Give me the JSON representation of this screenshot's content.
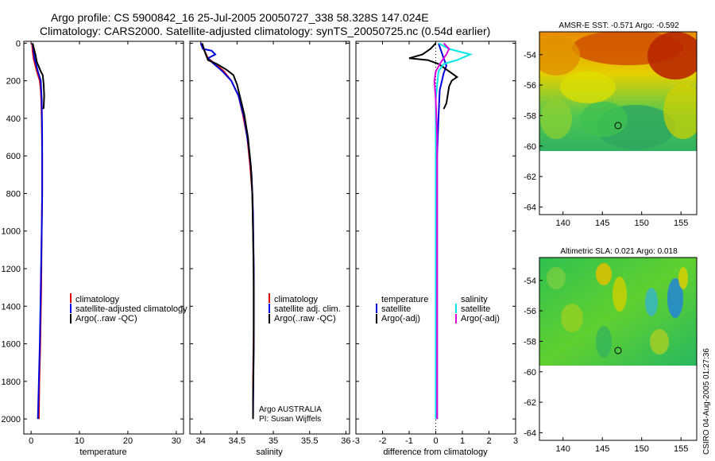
{
  "header": {
    "line1": "Argo profile: CS 5900842_16 25-Jul-2005 20050727_338 58.328S 147.024E",
    "line2": "Climatology: CARS2000. Satellite-adjusted climatology: synTS_20050725.nc (0.54d earlier)"
  },
  "depth_ticks": [
    "0",
    "200",
    "400",
    "600",
    "800",
    "1000",
    "1200",
    "1400",
    "1600",
    "1800",
    "2000"
  ],
  "colors": {
    "red": "#e00000",
    "blue": "#0000e0",
    "black": "#000000",
    "cyan": "#00e8e8",
    "magenta": "#e000e0"
  },
  "chart_data": [
    {
      "type": "line",
      "name": "temperature-profile",
      "xlabel": "temperature",
      "xlim": [
        -1.5,
        31.5
      ],
      "ylim": [
        2080,
        -10
      ],
      "xticks": [
        "0",
        "10",
        "20",
        "30"
      ],
      "y_reversed": true,
      "legend": [
        "climatology",
        "satellite-adjusted climatology",
        "Argo(..raw -QC)"
      ],
      "series": [
        {
          "name": "climatology",
          "color": "red",
          "points": [
            [
              0.2,
              0
            ],
            [
              0.3,
              40
            ],
            [
              0.5,
              80
            ],
            [
              1.2,
              150
            ],
            [
              1.8,
              200
            ],
            [
              2.0,
              250
            ],
            [
              2.1,
              300
            ],
            [
              2.2,
              400
            ],
            [
              2.3,
              600
            ],
            [
              2.3,
              800
            ],
            [
              2.2,
              1000
            ],
            [
              2.1,
              1300
            ],
            [
              1.9,
              1600
            ],
            [
              1.7,
              1800
            ],
            [
              1.6,
              2000
            ]
          ]
        },
        {
          "name": "satellite",
          "color": "blue",
          "points": [
            [
              0.3,
              0
            ],
            [
              0.5,
              40
            ],
            [
              0.7,
              80
            ],
            [
              1.4,
              150
            ],
            [
              2.0,
              200
            ],
            [
              2.2,
              300
            ],
            [
              2.3,
              500
            ],
            [
              2.3,
              800
            ],
            [
              2.2,
              1000
            ],
            [
              2.0,
              1300
            ],
            [
              1.8,
              1600
            ],
            [
              1.6,
              1800
            ],
            [
              1.4,
              2000
            ]
          ]
        },
        {
          "name": "Argo",
          "color": "black",
          "points": [
            [
              0.3,
              0
            ],
            [
              0.6,
              30
            ],
            [
              0.9,
              60
            ],
            [
              1.2,
              100
            ],
            [
              2.0,
              150
            ],
            [
              2.4,
              170
            ],
            [
              2.6,
              220
            ],
            [
              2.7,
              280
            ],
            [
              2.6,
              340
            ],
            [
              2.5,
              350
            ]
          ]
        }
      ]
    },
    {
      "type": "line",
      "name": "salinity-profile",
      "xlabel": "salinity",
      "xlim": [
        33.85,
        36.05
      ],
      "ylim": [
        2080,
        -10
      ],
      "xticks": [
        "34",
        "34.5",
        "35",
        "35.5",
        "36"
      ],
      "y_reversed": true,
      "legend": [
        "climatology",
        "satellite adj. clim.",
        "Argo(..raw -QC)"
      ],
      "annotation": [
        "Argo AUSTRALIA",
        "PI: Susan Wijffels"
      ],
      "series": [
        {
          "name": "climatology",
          "color": "red",
          "points": [
            [
              34.0,
              0
            ],
            [
              34.05,
              40
            ],
            [
              34.1,
              80
            ],
            [
              34.2,
              110
            ],
            [
              34.32,
              150
            ],
            [
              34.42,
              200
            ],
            [
              34.52,
              280
            ],
            [
              34.58,
              380
            ],
            [
              34.64,
              500
            ],
            [
              34.68,
              650
            ],
            [
              34.71,
              800
            ],
            [
              34.72,
              1000
            ],
            [
              34.73,
              1200
            ],
            [
              34.73,
              1500
            ],
            [
              34.72,
              1800
            ],
            [
              34.72,
              2000
            ]
          ]
        },
        {
          "name": "satellite",
          "color": "blue",
          "points": [
            [
              34.0,
              0
            ],
            [
              34.03,
              30
            ],
            [
              34.15,
              40
            ],
            [
              34.2,
              60
            ],
            [
              34.1,
              80
            ],
            [
              34.15,
              100
            ],
            [
              34.3,
              150
            ],
            [
              34.42,
              200
            ],
            [
              34.52,
              280
            ],
            [
              34.6,
              400
            ],
            [
              34.66,
              550
            ],
            [
              34.7,
              700
            ],
            [
              34.72,
              900
            ],
            [
              34.73,
              1200
            ],
            [
              34.73,
              1600
            ],
            [
              34.72,
              2000
            ]
          ]
        },
        {
          "name": "Argo",
          "color": "black",
          "points": [
            [
              34.02,
              0
            ],
            [
              34.05,
              40
            ],
            [
              34.1,
              90
            ],
            [
              34.22,
              110
            ],
            [
              34.35,
              140
            ],
            [
              34.45,
              170
            ],
            [
              34.5,
              220
            ],
            [
              34.55,
              300
            ],
            [
              34.6,
              380
            ],
            [
              34.65,
              500
            ],
            [
              34.69,
              650
            ],
            [
              34.71,
              800
            ],
            [
              34.72,
              1000
            ],
            [
              34.73,
              1300
            ],
            [
              34.73,
              1600
            ],
            [
              34.72,
              1900
            ],
            [
              34.72,
              2000
            ]
          ]
        }
      ]
    },
    {
      "type": "line",
      "name": "difference-profile",
      "xlabel": "difference from climatology",
      "xlim": [
        -3,
        3
      ],
      "ylim": [
        2080,
        -10
      ],
      "xticks": [
        "-3",
        "-2",
        "-1",
        "0",
        "1",
        "2",
        "3"
      ],
      "y_reversed": true,
      "legend_left": [
        "temperature",
        "satellite",
        "Argo(-adj)"
      ],
      "legend_right": [
        "salinity",
        "satellite",
        "Argo(-adj)"
      ],
      "series": [
        {
          "name": "temp-satellite",
          "color": "blue",
          "points": [
            [
              0.1,
              0
            ],
            [
              0.2,
              40
            ],
            [
              0.3,
              80
            ],
            [
              0.4,
              120
            ],
            [
              0.3,
              160
            ],
            [
              0.15,
              250
            ],
            [
              0.1,
              400
            ],
            [
              0.05,
              600
            ],
            [
              0.05,
              1000
            ],
            [
              0.05,
              1500
            ],
            [
              0.05,
              2000
            ]
          ]
        },
        {
          "name": "temp-argo",
          "color": "black",
          "points": [
            [
              0.0,
              0
            ],
            [
              -0.2,
              30
            ],
            [
              -0.5,
              60
            ],
            [
              -1.0,
              80
            ],
            [
              -0.3,
              90
            ],
            [
              0.1,
              110
            ],
            [
              0.5,
              150
            ],
            [
              0.8,
              180
            ],
            [
              0.6,
              200
            ],
            [
              0.5,
              230
            ],
            [
              0.4,
              320
            ],
            [
              0.3,
              350
            ]
          ]
        },
        {
          "name": "sal-satellite",
          "color": "cyan",
          "points": [
            [
              0.1,
              0
            ],
            [
              0.5,
              30
            ],
            [
              1.3,
              60
            ],
            [
              0.8,
              90
            ],
            [
              0.3,
              110
            ],
            [
              0.1,
              150
            ],
            [
              0.0,
              300
            ],
            [
              0.0,
              600
            ],
            [
              0.0,
              1000
            ],
            [
              0.0,
              1500
            ],
            [
              0.0,
              2000
            ]
          ]
        },
        {
          "name": "sal-argo",
          "color": "magenta",
          "points": [
            [
              0.3,
              0
            ],
            [
              0.5,
              30
            ],
            [
              0.4,
              60
            ],
            [
              0.2,
              100
            ],
            [
              0.0,
              150
            ],
            [
              -0.05,
              200
            ],
            [
              0.0,
              300
            ],
            [
              0.05,
              500
            ],
            [
              0.05,
              800
            ],
            [
              0.05,
              1200
            ],
            [
              0.05,
              2000
            ]
          ]
        }
      ]
    },
    {
      "type": "heatmap",
      "name": "amsr-sst-map",
      "title": "AMSR-E SST: -0.571  Argo: -0.592",
      "xlim": [
        137,
        157
      ],
      "ylim": [
        -64.5,
        -52.5
      ],
      "xticks": [
        "140",
        "145",
        "150",
        "155"
      ],
      "yticks": [
        "-54",
        "-56",
        "-58",
        "-60",
        "-62",
        "-64"
      ],
      "marker": [
        147.0,
        -58.3
      ]
    },
    {
      "type": "heatmap",
      "name": "altimetric-sla-map",
      "title": "Altimetric SLA: 0.021  Argo: 0.018",
      "xlim": [
        137,
        157
      ],
      "ylim": [
        -64.5,
        -52.5
      ],
      "xticks": [
        "140",
        "145",
        "150",
        "155"
      ],
      "yticks": [
        "-54",
        "-56",
        "-58",
        "-60",
        "-62",
        "-64"
      ],
      "marker": [
        147.0,
        -58.3
      ]
    }
  ],
  "side_stamp": "CSIRO 04-Aug-2005 01:27:36"
}
